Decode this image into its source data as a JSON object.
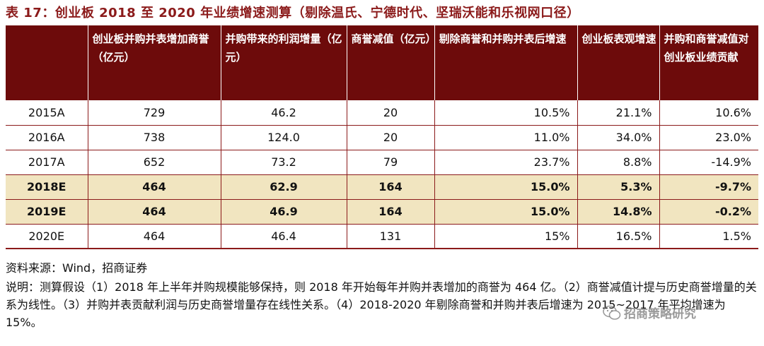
{
  "title": "表 17：创业板 2018 至 2020 年业绩增速测算（剔除温氏、宁德时代、坚瑞沃能和乐视网口径）",
  "table": {
    "headers": [
      "",
      "创业板并购并表增加商誉（亿元）",
      "并购带来的利润增量（亿元）",
      "商誉减值（亿元）",
      "剔除商誉和并购并表后增速",
      "创业板表观增速",
      "并购和商誉减值对创业板业绩贡献"
    ],
    "rows": [
      {
        "year": "2015A",
        "goodwill": "729",
        "profit": "46.2",
        "impair": "20",
        "adj": "10.5%",
        "apparent": "21.1%",
        "contrib": "10.6%",
        "highlight": false
      },
      {
        "year": "2016A",
        "goodwill": "738",
        "profit": "124.0",
        "impair": "20",
        "adj": "11.0%",
        "apparent": "34.0%",
        "contrib": "23.0%",
        "highlight": false
      },
      {
        "year": "2017A",
        "goodwill": "652",
        "profit": "73.2",
        "impair": "79",
        "adj": "23.7%",
        "apparent": "8.8%",
        "contrib": "-14.9%",
        "highlight": false
      },
      {
        "year": "2018E",
        "goodwill": "464",
        "profit": "62.9",
        "impair": "164",
        "adj": "15.0%",
        "apparent": "5.3%",
        "contrib": "-9.7%",
        "highlight": true
      },
      {
        "year": "2019E",
        "goodwill": "464",
        "profit": "46.9",
        "impair": "164",
        "adj": "15.0%",
        "apparent": "14.8%",
        "contrib": "-0.2%",
        "highlight": true
      },
      {
        "year": "2020E",
        "goodwill": "464",
        "profit": "46.4",
        "impair": "131",
        "adj": "15%",
        "apparent": "16.5%",
        "contrib": "1.5%",
        "highlight": false
      }
    ]
  },
  "source": "资料来源：Wind，招商证券",
  "note": "说明：测算假设（1）2018 年上半年并购规模能够保持，则 2018 年开始每年并购并表增加的商誉为 464 亿。（2）商誉减值计提与历史商誉增量的关系为线性。（3）并购并表贡献利润与历史商誉增量存在线性关系。（4）2018-2020 年剔除商誉和并购并表后增速为 2015~2017 年平均增速为 15%。",
  "watermark": "招商策略研究",
  "colors": {
    "header_bg": "#6d0b0b",
    "highlight_bg": "#f1e5c0",
    "accent": "#8b1a1a"
  }
}
